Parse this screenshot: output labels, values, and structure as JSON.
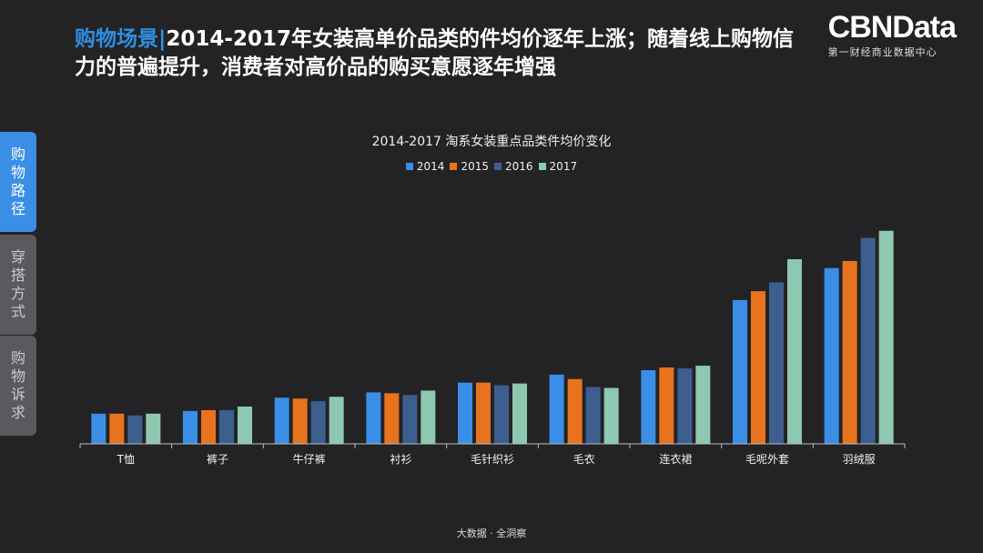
{
  "header": {
    "tag": "购物场景",
    "separator": "|",
    "headline": "2014-2017年女装高单价品类的件均价逐年上涨；随着线上购物信力的普遍提升，消费者对高价品的购买意愿逐年增强"
  },
  "brand": {
    "logo": "CBNData",
    "subtitle": "第一财经商业数据中心"
  },
  "side_tabs": [
    {
      "label": "购物路径",
      "active": true
    },
    {
      "label": "穿搭方式",
      "active": false
    },
    {
      "label": "购物诉求",
      "active": false
    }
  ],
  "footer": "大数据 · 全洞察",
  "colors": {
    "2014": "#3a8ee6",
    "2015": "#e8731e",
    "2016": "#3d5f8f",
    "2017": "#8ec8b0"
  },
  "chart_data": {
    "type": "bar",
    "title": "2014-2017 淘系女装重点品类件均价变化",
    "legend_position": "top",
    "categories": [
      "T恤",
      "裤子",
      "牛仔裤",
      "衬衫",
      "毛针织衫",
      "毛衣",
      "连衣裙",
      "毛呢外套",
      "羽绒服"
    ],
    "series": [
      {
        "name": "2014",
        "values": [
          34,
          37,
          52,
          58,
          69,
          78,
          83,
          162,
          198
        ]
      },
      {
        "name": "2015",
        "values": [
          34,
          38,
          51,
          57,
          69,
          73,
          86,
          172,
          206
        ]
      },
      {
        "name": "2016",
        "values": [
          32,
          38,
          48,
          55,
          66,
          64,
          85,
          182,
          232
        ]
      },
      {
        "name": "2017",
        "values": [
          34,
          42,
          53,
          60,
          68,
          63,
          88,
          208,
          240
        ]
      }
    ],
    "ylim": [
      0,
      250
    ],
    "grid": false
  }
}
